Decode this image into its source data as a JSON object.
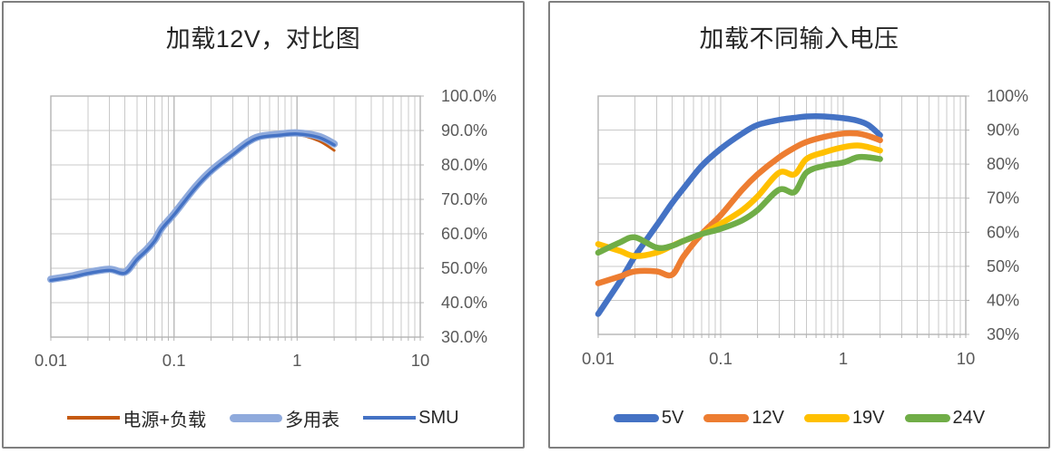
{
  "accent_colors": {
    "blue": "#4472C4",
    "light_blue": "#8FAADC",
    "orange": "#ED7D31",
    "dark_orange": "#C55A11",
    "yellow": "#FFC000",
    "green": "#70AD47",
    "grid": "#c9c9c9",
    "axis": "#b3b3b3",
    "tick_text": "#595959",
    "title_text": "#262626",
    "panel_border": "#7f7f7f"
  },
  "chart_data": [
    {
      "type": "line",
      "title": "加载12V，对比图",
      "x_scale": "log",
      "x_range": [
        0.01,
        10
      ],
      "y_range": [
        30,
        100
      ],
      "grid": true,
      "legend_position": "bottom",
      "y_axis_side": "right",
      "x_ticks": [
        {
          "value": 0.01,
          "label": "0.01"
        },
        {
          "value": 0.1,
          "label": "0.1"
        },
        {
          "value": 1,
          "label": "1"
        },
        {
          "value": 10,
          "label": "10"
        }
      ],
      "y_ticks": [
        {
          "value": 100,
          "label": "100.0%"
        },
        {
          "value": 90,
          "label": "90.0%"
        },
        {
          "value": 80,
          "label": "80.0%"
        },
        {
          "value": 70,
          "label": "70.0%"
        },
        {
          "value": 60,
          "label": "60.0%"
        },
        {
          "value": 50,
          "label": "50.0%"
        },
        {
          "value": 40,
          "label": "40.0%"
        },
        {
          "value": 30,
          "label": "30.0%"
        }
      ],
      "x": [
        0.01,
        0.015,
        0.02,
        0.03,
        0.04,
        0.05,
        0.06,
        0.07,
        0.08,
        0.1,
        0.15,
        0.2,
        0.3,
        0.4,
        0.5,
        0.7,
        1,
        1.5,
        2
      ],
      "series": [
        {
          "name": "电源+负载",
          "color": "#C55A11",
          "thick": false,
          "values": [
            46.3,
            47.3,
            48.3,
            49.2,
            48.4,
            52.3,
            55.0,
            57.8,
            61.3,
            65.3,
            73.2,
            77.8,
            82.8,
            86.2,
            87.8,
            88.4,
            88.8,
            87.0,
            84.2
          ]
        },
        {
          "name": "多用表",
          "color": "#8FAADC",
          "thick": true,
          "values": [
            46.8,
            47.8,
            48.8,
            49.7,
            48.9,
            52.8,
            55.5,
            58.3,
            61.8,
            65.8,
            73.7,
            78.3,
            83.3,
            86.7,
            88.3,
            88.9,
            89.3,
            88.3,
            86.1
          ]
        },
        {
          "name": "SMU",
          "color": "#4472C4",
          "thick": false,
          "values": [
            46.5,
            47.5,
            48.5,
            49.4,
            48.6,
            52.5,
            55.2,
            58.0,
            61.5,
            65.5,
            73.4,
            78.0,
            83.0,
            86.4,
            88.0,
            88.6,
            89.0,
            88.0,
            85.8
          ]
        }
      ]
    },
    {
      "type": "line",
      "title": "加载不同输入电压",
      "x_scale": "log",
      "x_range": [
        0.01,
        10
      ],
      "y_range": [
        30,
        100
      ],
      "grid": true,
      "legend_position": "bottom",
      "y_axis_side": "right",
      "x_ticks": [
        {
          "value": 0.01,
          "label": "0.01"
        },
        {
          "value": 0.1,
          "label": "0.1"
        },
        {
          "value": 1,
          "label": "1"
        },
        {
          "value": 10,
          "label": "10"
        }
      ],
      "y_ticks": [
        {
          "value": 100,
          "label": "100%"
        },
        {
          "value": 90,
          "label": "90%"
        },
        {
          "value": 80,
          "label": "80%"
        },
        {
          "value": 70,
          "label": "70%"
        },
        {
          "value": 60,
          "label": "60%"
        },
        {
          "value": 50,
          "label": "50%"
        },
        {
          "value": 40,
          "label": "40%"
        },
        {
          "value": 30,
          "label": "30%"
        }
      ],
      "x": [
        0.01,
        0.015,
        0.02,
        0.03,
        0.04,
        0.05,
        0.07,
        0.1,
        0.15,
        0.2,
        0.3,
        0.4,
        0.5,
        0.7,
        1,
        1.3,
        1.6,
        2
      ],
      "series": [
        {
          "name": "5V",
          "color": "#4472C4",
          "thick": true,
          "values": [
            36,
            45.5,
            53,
            62,
            68.5,
            73,
            79.5,
            84.5,
            89,
            91.5,
            93,
            93.6,
            94,
            94,
            93.5,
            92.8,
            91.5,
            88.5
          ]
        },
        {
          "name": "12V",
          "color": "#ED7D31",
          "thick": true,
          "values": [
            45,
            47,
            48.5,
            48.5,
            47.5,
            53,
            59.5,
            65,
            72.5,
            77,
            82,
            84.8,
            86.5,
            88,
            89,
            89,
            88.3,
            87
          ]
        },
        {
          "name": "19V",
          "color": "#FFC000",
          "thick": true,
          "values": [
            56.5,
            54.5,
            53,
            54,
            56,
            57.5,
            59.5,
            62.5,
            66.5,
            70.5,
            77.5,
            77.0,
            81.5,
            83.5,
            85,
            85.5,
            85,
            84
          ]
        },
        {
          "name": "24V",
          "color": "#70AD47",
          "thick": true,
          "values": [
            54,
            57,
            58.5,
            55.5,
            56,
            57.5,
            59.5,
            61,
            63.5,
            66.5,
            72.5,
            71.8,
            77.5,
            79.5,
            80.5,
            82,
            82,
            81.5
          ]
        }
      ]
    }
  ]
}
